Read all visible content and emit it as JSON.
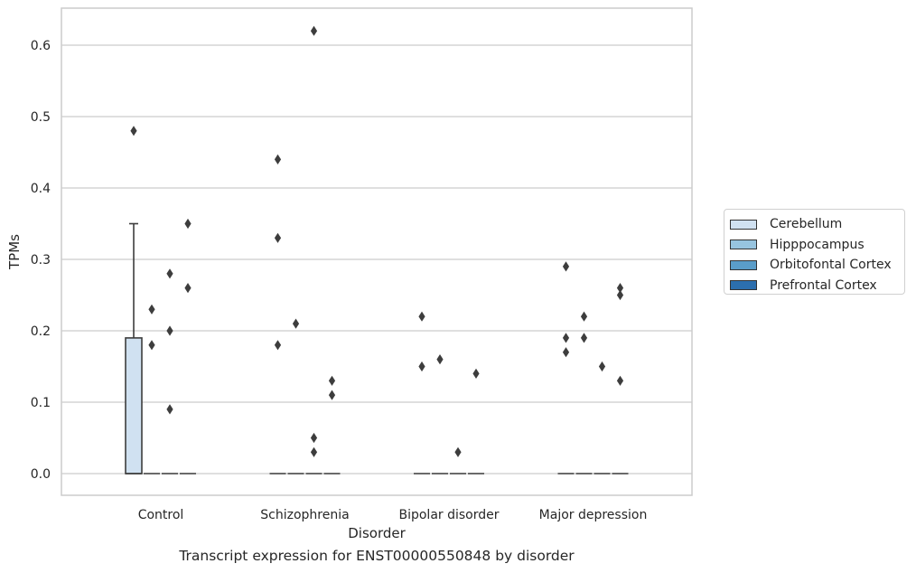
{
  "chart_data": {
    "type": "box",
    "title": "Transcript expression for ENST00000550848 by disorder",
    "xlabel": "Disorder",
    "ylabel": "TPMs",
    "ylim": [
      -0.03,
      0.65
    ],
    "yticks": [
      "0.0",
      "0.1",
      "0.2",
      "0.3",
      "0.4",
      "0.5",
      "0.6"
    ],
    "grid": true,
    "legend_position": "right",
    "categories": [
      "Control",
      "Schizophrenia",
      "Bipolar disorder",
      "Major depression"
    ],
    "series": [
      {
        "name": "Cerebellum",
        "color": "#d0e1f1"
      },
      {
        "name": "Hipppocampus",
        "color": "#97c4df"
      },
      {
        "name": "Orbitofontal Cortex",
        "color": "#5a9dc9"
      },
      {
        "name": "Prefrontal Cortex",
        "color": "#2c6fae"
      }
    ],
    "boxes": [
      {
        "category": 0,
        "series": 0,
        "q1": 0.0,
        "median": 0.0,
        "q3": 0.19,
        "whisker_low": 0.0,
        "whisker_high": 0.35
      },
      {
        "category": 0,
        "series": 1,
        "q1": 0.0,
        "median": 0.0,
        "q3": 0.0,
        "whisker_low": 0.0,
        "whisker_high": 0.0
      },
      {
        "category": 0,
        "series": 2,
        "q1": 0.0,
        "median": 0.0,
        "q3": 0.0,
        "whisker_low": 0.0,
        "whisker_high": 0.0
      },
      {
        "category": 0,
        "series": 3,
        "q1": 0.0,
        "median": 0.0,
        "q3": 0.0,
        "whisker_low": 0.0,
        "whisker_high": 0.0
      },
      {
        "category": 1,
        "series": 0,
        "q1": 0.0,
        "median": 0.0,
        "q3": 0.0,
        "whisker_low": 0.0,
        "whisker_high": 0.0
      },
      {
        "category": 1,
        "series": 1,
        "q1": 0.0,
        "median": 0.0,
        "q3": 0.0,
        "whisker_low": 0.0,
        "whisker_high": 0.0
      },
      {
        "category": 1,
        "series": 2,
        "q1": 0.0,
        "median": 0.0,
        "q3": 0.0,
        "whisker_low": 0.0,
        "whisker_high": 0.0
      },
      {
        "category": 1,
        "series": 3,
        "q1": 0.0,
        "median": 0.0,
        "q3": 0.0,
        "whisker_low": 0.0,
        "whisker_high": 0.0
      },
      {
        "category": 2,
        "series": 0,
        "q1": 0.0,
        "median": 0.0,
        "q3": 0.0,
        "whisker_low": 0.0,
        "whisker_high": 0.0
      },
      {
        "category": 2,
        "series": 1,
        "q1": 0.0,
        "median": 0.0,
        "q3": 0.0,
        "whisker_low": 0.0,
        "whisker_high": 0.0
      },
      {
        "category": 2,
        "series": 2,
        "q1": 0.0,
        "median": 0.0,
        "q3": 0.0,
        "whisker_low": 0.0,
        "whisker_high": 0.0
      },
      {
        "category": 2,
        "series": 3,
        "q1": 0.0,
        "median": 0.0,
        "q3": 0.0,
        "whisker_low": 0.0,
        "whisker_high": 0.0
      },
      {
        "category": 3,
        "series": 0,
        "q1": 0.0,
        "median": 0.0,
        "q3": 0.0,
        "whisker_low": 0.0,
        "whisker_high": 0.0
      },
      {
        "category": 3,
        "series": 1,
        "q1": 0.0,
        "median": 0.0,
        "q3": 0.0,
        "whisker_low": 0.0,
        "whisker_high": 0.0
      },
      {
        "category": 3,
        "series": 2,
        "q1": 0.0,
        "median": 0.0,
        "q3": 0.0,
        "whisker_low": 0.0,
        "whisker_high": 0.0
      },
      {
        "category": 3,
        "series": 3,
        "q1": 0.0,
        "median": 0.0,
        "q3": 0.0,
        "whisker_low": 0.0,
        "whisker_high": 0.0
      }
    ],
    "outliers": [
      {
        "category": 0,
        "series": 0,
        "y": 0.48
      },
      {
        "category": 0,
        "series": 1,
        "y": 0.23
      },
      {
        "category": 0,
        "series": 1,
        "y": 0.18
      },
      {
        "category": 0,
        "series": 2,
        "y": 0.28
      },
      {
        "category": 0,
        "series": 2,
        "y": 0.2
      },
      {
        "category": 0,
        "series": 2,
        "y": 0.09
      },
      {
        "category": 0,
        "series": 3,
        "y": 0.35
      },
      {
        "category": 0,
        "series": 3,
        "y": 0.26
      },
      {
        "category": 1,
        "series": 0,
        "y": 0.44
      },
      {
        "category": 1,
        "series": 0,
        "y": 0.33
      },
      {
        "category": 1,
        "series": 0,
        "y": 0.18
      },
      {
        "category": 1,
        "series": 1,
        "y": 0.21
      },
      {
        "category": 1,
        "series": 2,
        "y": 0.62
      },
      {
        "category": 1,
        "series": 2,
        "y": 0.05
      },
      {
        "category": 1,
        "series": 2,
        "y": 0.03
      },
      {
        "category": 1,
        "series": 3,
        "y": 0.13
      },
      {
        "category": 1,
        "series": 3,
        "y": 0.11
      },
      {
        "category": 2,
        "series": 0,
        "y": 0.22
      },
      {
        "category": 2,
        "series": 0,
        "y": 0.15
      },
      {
        "category": 2,
        "series": 1,
        "y": 0.16
      },
      {
        "category": 2,
        "series": 2,
        "y": 0.03
      },
      {
        "category": 2,
        "series": 3,
        "y": 0.14
      },
      {
        "category": 3,
        "series": 0,
        "y": 0.29
      },
      {
        "category": 3,
        "series": 0,
        "y": 0.19
      },
      {
        "category": 3,
        "series": 0,
        "y": 0.17
      },
      {
        "category": 3,
        "series": 1,
        "y": 0.22
      },
      {
        "category": 3,
        "series": 1,
        "y": 0.19
      },
      {
        "category": 3,
        "series": 2,
        "y": 0.15
      },
      {
        "category": 3,
        "series": 3,
        "y": 0.26
      },
      {
        "category": 3,
        "series": 3,
        "y": 0.25
      },
      {
        "category": 3,
        "series": 3,
        "y": 0.13
      }
    ]
  }
}
